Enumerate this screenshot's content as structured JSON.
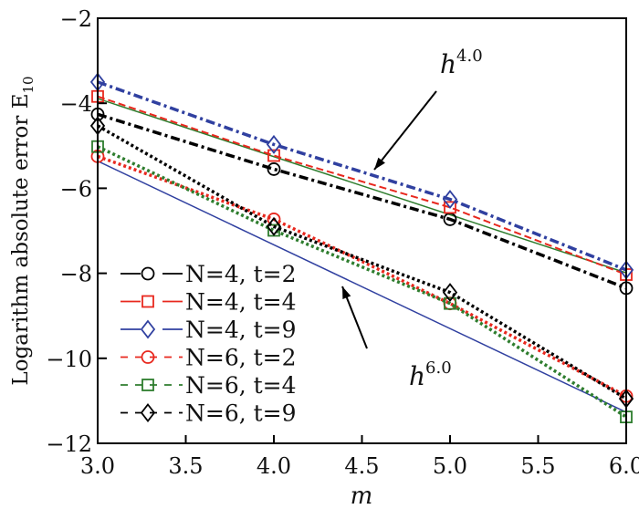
{
  "chart_data": {
    "type": "line",
    "title": "",
    "xlabel": "m",
    "ylabel": "Logarithm absolute error E",
    "ylabel_subscript": "10",
    "xlim": [
      3.0,
      6.0
    ],
    "ylim": [
      -12,
      -2
    ],
    "xticks": [
      "3.0",
      "3.5",
      "4.0",
      "4.5",
      "5.0",
      "5.5",
      "6.0"
    ],
    "yticks": [
      "-2",
      "-4",
      "-6",
      "-8",
      "-10",
      "-12"
    ],
    "grid": false,
    "legend_placement": "bottom-left",
    "x": [
      3.0,
      4.0,
      5.0,
      6.0
    ],
    "series": [
      {
        "name": "N=4, t=2",
        "color": "#000000",
        "marker": "circle",
        "values": [
          -4.26,
          -5.55,
          -6.73,
          -8.35
        ]
      },
      {
        "name": "N=4, t=4",
        "color": "#e8281e",
        "marker": "square",
        "values": [
          -3.84,
          -5.23,
          -6.45,
          -8.03
        ]
      },
      {
        "name": "N=4, t=9",
        "color": "#3040a0",
        "marker": "diamond",
        "values": [
          -3.5,
          -4.97,
          -6.26,
          -7.92
        ]
      },
      {
        "name": "N=6, t=2",
        "color": "#e8281e",
        "marker": "circle",
        "values": [
          -5.25,
          -6.73,
          -8.71,
          -10.89
        ]
      },
      {
        "name": "N=6, t=4",
        "color": "#2e7d2e",
        "marker": "square",
        "values": [
          -5.02,
          -6.99,
          -8.71,
          -11.38
        ]
      },
      {
        "name": "N=6, t=9",
        "color": "#000000",
        "marker": "diamond",
        "values": [
          -4.53,
          -6.9,
          -8.45,
          -10.95
        ]
      }
    ],
    "reference_lines": [
      {
        "label": "h",
        "exponent": "4.0",
        "color": "#2e7d2e",
        "x": [
          3.0,
          6.0
        ],
        "values": [
          -3.89,
          -7.99
        ]
      },
      {
        "label": "h",
        "exponent": "6.0",
        "color": "#3040a0",
        "x": [
          3.0,
          6.0
        ],
        "values": [
          -5.36,
          -11.27
        ]
      }
    ]
  }
}
